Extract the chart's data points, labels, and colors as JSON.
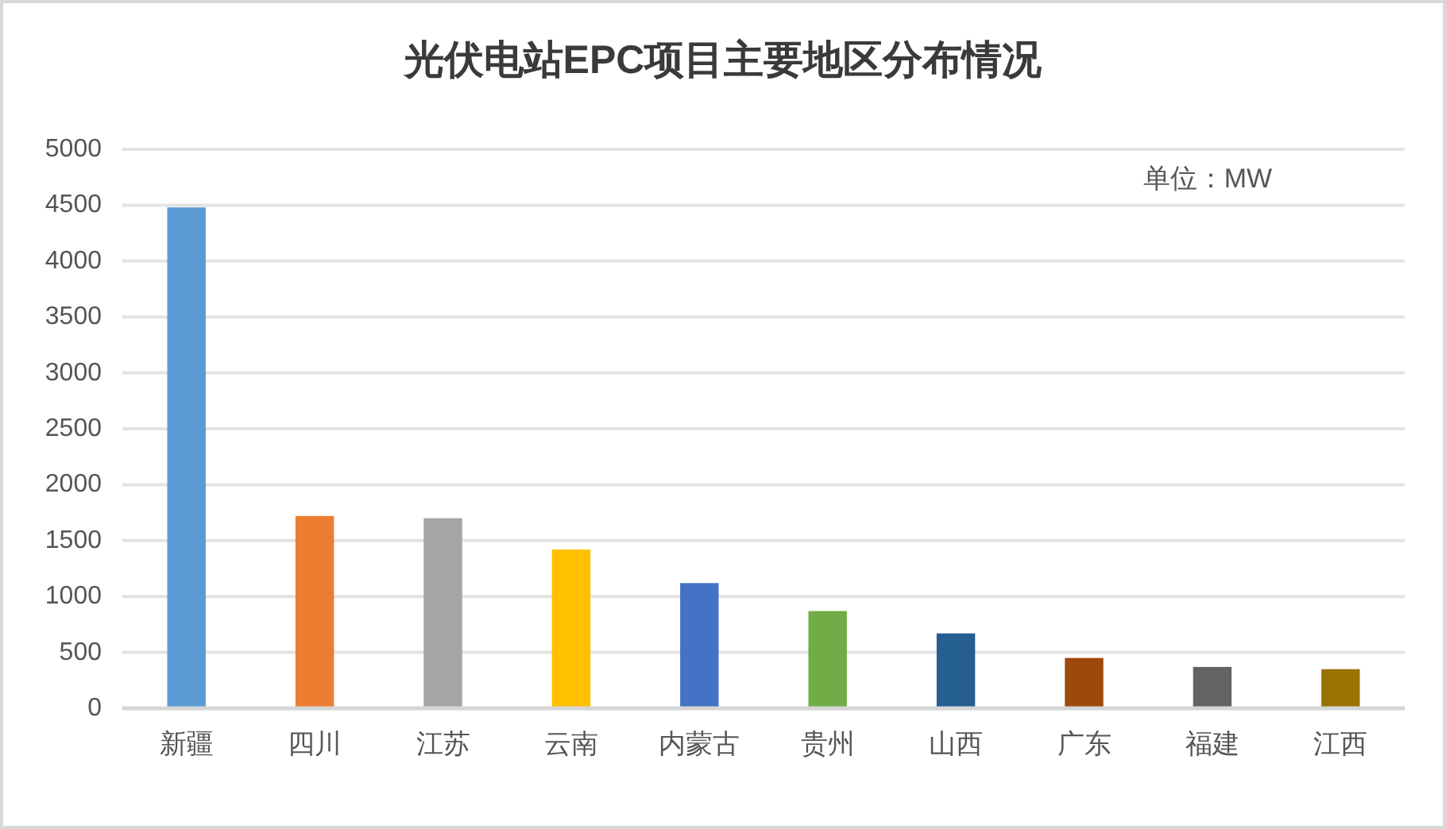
{
  "chart_data": {
    "type": "bar",
    "title": "光伏电站EPC项目主要地区分布情况",
    "categories": [
      "新疆",
      "四川",
      "江苏",
      "云南",
      "内蒙古",
      "贵州",
      "山西",
      "广东",
      "福建",
      "江西"
    ],
    "values": [
      4480,
      1720,
      1700,
      1420,
      1120,
      870,
      670,
      450,
      370,
      350
    ],
    "colors": [
      "#5b9bd5",
      "#ed7d31",
      "#a5a5a5",
      "#ffc000",
      "#4472c4",
      "#70ad47",
      "#255e91",
      "#9e480e",
      "#636363",
      "#997300"
    ],
    "ylim": [
      0,
      5000
    ],
    "yticks": [
      0,
      500,
      1000,
      1500,
      2000,
      2500,
      3000,
      3500,
      4000,
      4500,
      5000
    ],
    "grid": "y",
    "annotations": [
      "单位：MW"
    ]
  }
}
